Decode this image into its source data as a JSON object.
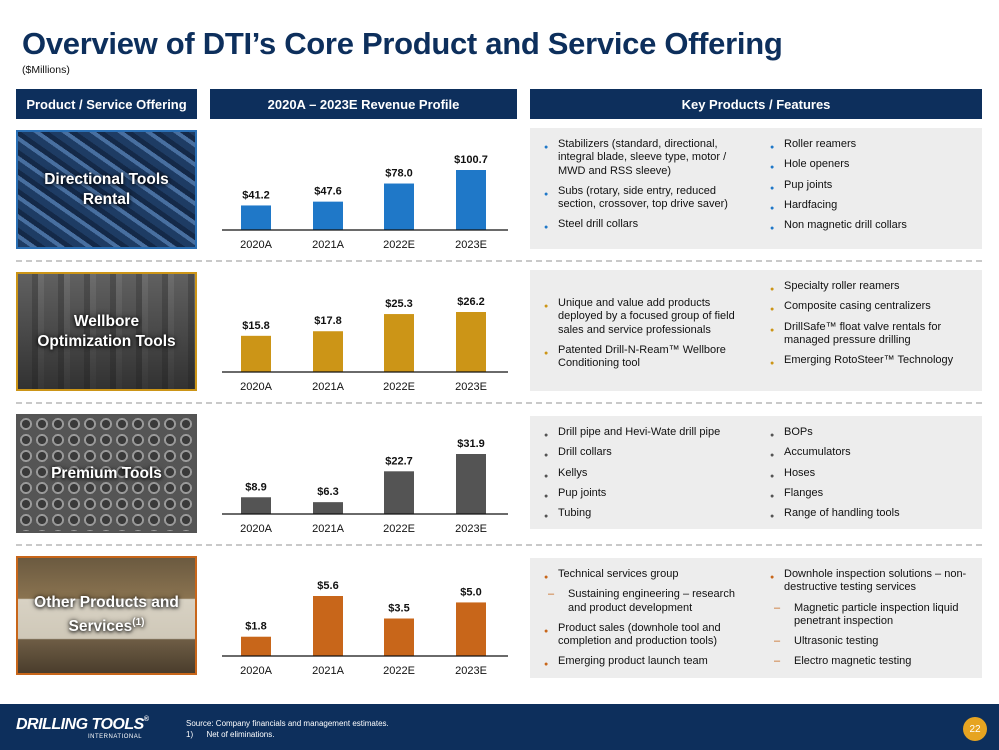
{
  "title": "Overview of DTI’s Core Product and Service Offering",
  "subtitle": "($Millions)",
  "headers": {
    "offering": "Product / Service Offering",
    "revenue": "2020A – 2023E Revenue Profile",
    "features": "Key Products / Features"
  },
  "colors": {
    "navy": "#0d2f5c",
    "directional": "#1f78c8",
    "wellbore": "#cc9517",
    "premium": "#545454",
    "other": "#c8661a",
    "page_badge": "#e6a421"
  },
  "sections": [
    {
      "name": "Directional Tools Rental",
      "features": {
        "left": [
          {
            "text": "Stabilizers (standard, directional, integral blade, sleeve type, motor / MWD and RSS sleeve)",
            "level": 1
          },
          {
            "text": "Subs (rotary, side entry, reduced section, crossover, top drive saver)",
            "level": 1
          },
          {
            "text": "Steel drill collars",
            "level": 1
          }
        ],
        "right": [
          {
            "text": "Roller reamers",
            "level": 1
          },
          {
            "text": "Hole openers",
            "level": 1
          },
          {
            "text": "Pup joints",
            "level": 1
          },
          {
            "text": "Hardfacing",
            "level": 1
          },
          {
            "text": "Non magnetic drill collars",
            "level": 1
          }
        ]
      }
    },
    {
      "name": "Wellbore Optimization Tools",
      "features": {
        "left": [
          {
            "text": "Unique and value add products deployed by a focused group of field sales and service professionals",
            "level": 1
          },
          {
            "text": "Patented Drill-N-Ream™ Wellbore Conditioning tool",
            "level": 1
          }
        ],
        "right": [
          {
            "text": "Specialty roller reamers",
            "level": 1
          },
          {
            "text": "Composite casing centralizers",
            "level": 1
          },
          {
            "text": "DrillSafe™ float valve rentals for managed pressure drilling",
            "level": 1
          },
          {
            "text": "Emerging RotoSteer™ Technology",
            "level": 1
          }
        ]
      }
    },
    {
      "name": "Premium Tools",
      "features": {
        "left": [
          {
            "text": "Drill pipe and Hevi-Wate drill pipe",
            "level": 1
          },
          {
            "text": "Drill collars",
            "level": 1
          },
          {
            "text": "Kellys",
            "level": 1
          },
          {
            "text": "Pup joints",
            "level": 1
          },
          {
            "text": "Tubing",
            "level": 1
          }
        ],
        "right": [
          {
            "text": "BOPs",
            "level": 1
          },
          {
            "text": "Accumulators",
            "level": 1
          },
          {
            "text": "Hoses",
            "level": 1
          },
          {
            "text": "Flanges",
            "level": 1
          },
          {
            "text": "Range of handling tools",
            "level": 1
          }
        ]
      }
    },
    {
      "name": "Other Products and Services",
      "name_sup": "(1)",
      "features": {
        "left": [
          {
            "text": "Technical services group",
            "level": 1
          },
          {
            "text": "Sustaining engineering – research and product development",
            "level": 2
          },
          {
            "text": "Product sales (downhole tool and completion and production tools)",
            "level": 1
          },
          {
            "text": "Emerging product launch team",
            "level": 1
          }
        ],
        "right": [
          {
            "text": "Downhole inspection solutions – non-destructive testing services",
            "level": 1
          },
          {
            "text": "Magnetic particle inspection liquid penetrant inspection",
            "level": 2
          },
          {
            "text": "Ultrasonic testing",
            "level": 2
          },
          {
            "text": "Electro magnetic testing",
            "level": 2
          }
        ]
      }
    }
  ],
  "chart_data": [
    {
      "type": "bar",
      "title": "Directional Tools Rental",
      "categories": [
        "2020A",
        "2021A",
        "2022E",
        "2023E"
      ],
      "values": [
        41.2,
        47.6,
        78.0,
        100.7
      ],
      "labels": [
        "$41.2",
        "$47.6",
        "$78.0",
        "$100.7"
      ],
      "ylim": [
        0,
        100.7
      ],
      "color": "#1f78c8"
    },
    {
      "type": "bar",
      "title": "Wellbore Optimization Tools",
      "categories": [
        "2020A",
        "2021A",
        "2022E",
        "2023E"
      ],
      "values": [
        15.8,
        17.8,
        25.3,
        26.2
      ],
      "labels": [
        "$15.8",
        "$17.8",
        "$25.3",
        "$26.2"
      ],
      "ylim": [
        0,
        26.2
      ],
      "color": "#cc9517"
    },
    {
      "type": "bar",
      "title": "Premium Tools",
      "categories": [
        "2020A",
        "2021A",
        "2022E",
        "2023E"
      ],
      "values": [
        8.9,
        6.3,
        22.7,
        31.9
      ],
      "labels": [
        "$8.9",
        "$6.3",
        "$22.7",
        "$31.9"
      ],
      "ylim": [
        0,
        31.9
      ],
      "color": "#545454"
    },
    {
      "type": "bar",
      "title": "Other Products and Services",
      "categories": [
        "2020A",
        "2021A",
        "2022E",
        "2023E"
      ],
      "values": [
        1.8,
        5.6,
        3.5,
        5.0
      ],
      "labels": [
        "$1.8",
        "$5.6",
        "$3.5",
        "$5.0"
      ],
      "ylim": [
        0,
        5.6
      ],
      "color": "#c8661a"
    }
  ],
  "footer": {
    "logo": "DRILLING TOOLS",
    "logo_reg": "®",
    "logo_sub": "INTERNATIONAL",
    "source": "Source: Company financials and management estimates.",
    "footnote": "1)      Net of eliminations.",
    "page": "22"
  }
}
